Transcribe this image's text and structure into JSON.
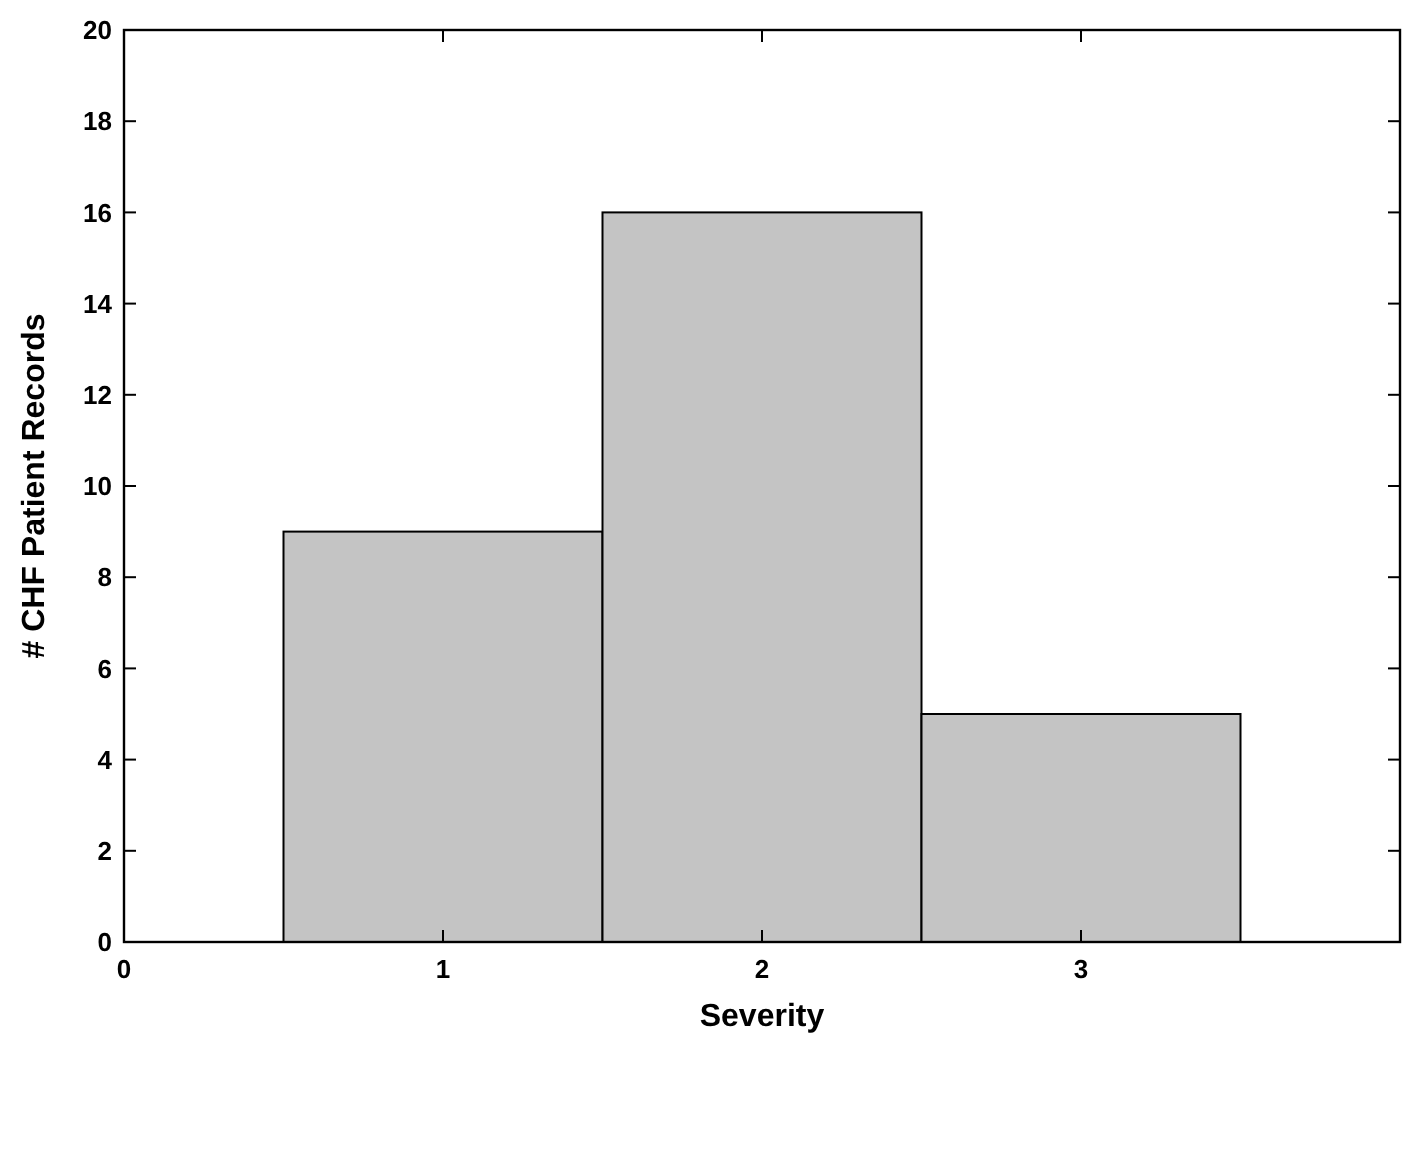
{
  "chart_data": {
    "type": "histogram",
    "xlabel": "Severity",
    "ylabel": "# CHF Patient Records",
    "bins": [
      0.5,
      1.5,
      2.5,
      3.5
    ],
    "values": [
      9,
      16,
      5
    ],
    "color": "#c4c4c4",
    "xlim": [
      0,
      4
    ],
    "xticks": [
      0,
      1,
      2,
      3
    ],
    "ylim": [
      0,
      20
    ],
    "yticks": [
      0,
      2,
      4,
      6,
      8,
      10,
      12,
      14,
      16,
      18,
      20
    ],
    "grid": false
  }
}
